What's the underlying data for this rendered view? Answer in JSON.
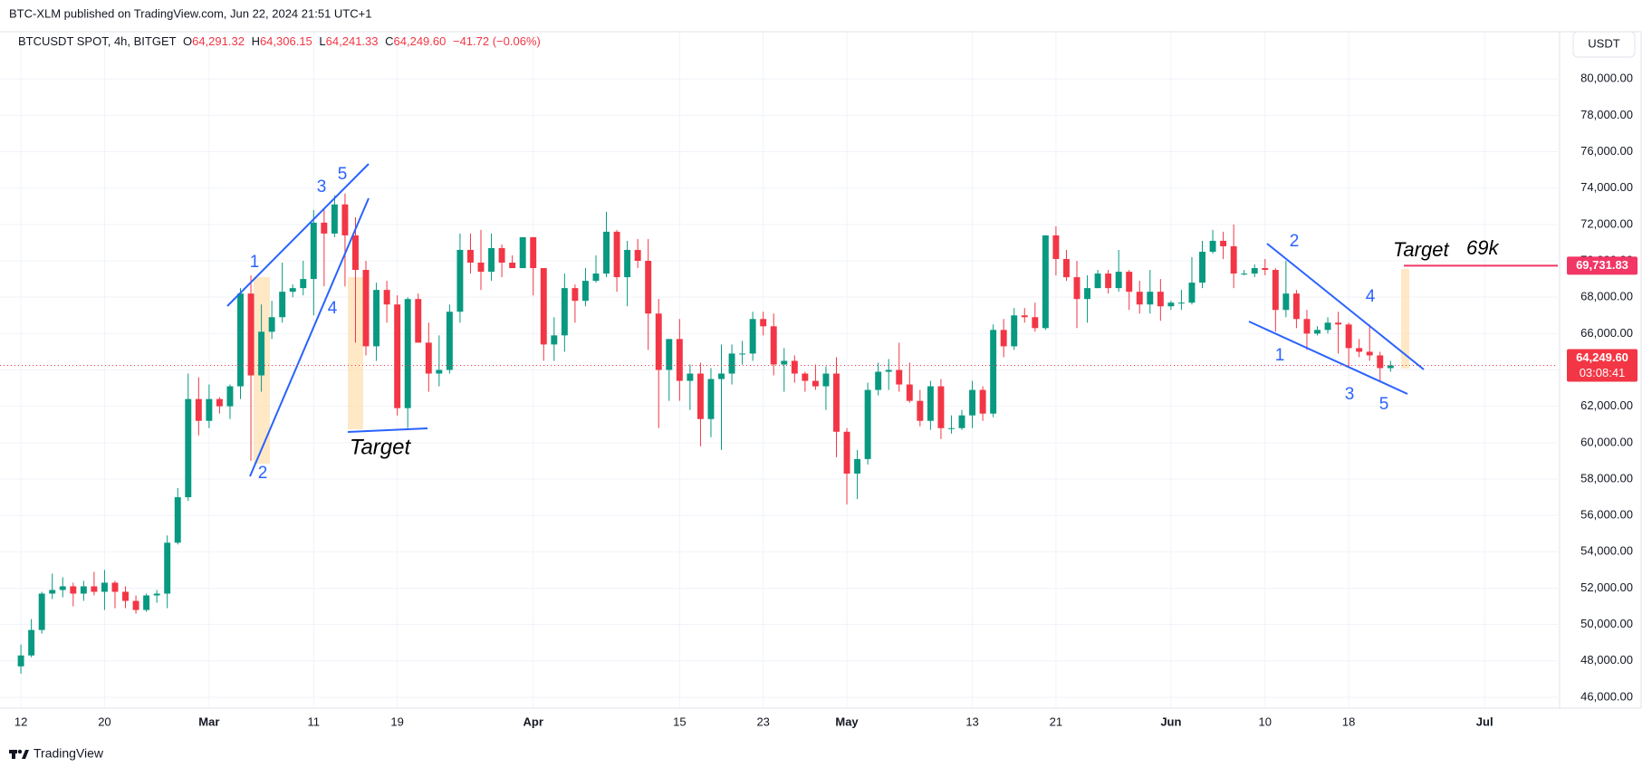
{
  "header": {
    "publisher": "BTC-XLM published on TradingView.com, Jun 22, 2024 21:51 UTC+1",
    "currency_button": "USDT",
    "brand": "TradingView"
  },
  "legend": {
    "symbol": "BTCUSDT SPOT, 4h, BITGET",
    "open_label": "O",
    "open": "64,291.32",
    "high_label": "H",
    "high": "64,306.15",
    "low_label": "L",
    "low": "64,241.33",
    "close_label": "C",
    "close": "64,249.60",
    "change": "−41.72 (−0.06%)"
  },
  "annotations": {
    "left_wave": [
      "1",
      "2",
      "3",
      "4",
      "5"
    ],
    "left_target": "Target",
    "right_wave": [
      "1",
      "2",
      "3",
      "4",
      "5"
    ],
    "right_target": "Target",
    "right_target_value": "69k"
  },
  "chart_data": {
    "type": "candlestick",
    "up_color": "#089981",
    "down_color": "#f23645",
    "grid": true,
    "xlim": [
      "2024-02-10",
      "2024-07-08"
    ],
    "xticks": [
      {
        "value": "2024-02-12",
        "label": "12"
      },
      {
        "value": "2024-02-20",
        "label": "20"
      },
      {
        "value": "2024-03-01",
        "label": "Mar"
      },
      {
        "value": "2024-03-11",
        "label": "11"
      },
      {
        "value": "2024-03-19",
        "label": "19"
      },
      {
        "value": "2024-04-01",
        "label": "Apr"
      },
      {
        "value": "2024-04-15",
        "label": "15"
      },
      {
        "value": "2024-04-23",
        "label": "23"
      },
      {
        "value": "2024-05-01",
        "label": "May"
      },
      {
        "value": "2024-05-13",
        "label": "13"
      },
      {
        "value": "2024-05-21",
        "label": "21"
      },
      {
        "value": "2024-06-01",
        "label": "Jun"
      },
      {
        "value": "2024-06-10",
        "label": "10"
      },
      {
        "value": "2024-06-18",
        "label": "18"
      },
      {
        "value": "2024-07-01",
        "label": "Jul"
      }
    ],
    "ylim": [
      45400,
      82600
    ],
    "yticks": [
      {
        "value": 46000,
        "label": "46,000.00"
      },
      {
        "value": 48000,
        "label": "48,000.00"
      },
      {
        "value": 50000,
        "label": "50,000.00"
      },
      {
        "value": 52000,
        "label": "52,000.00"
      },
      {
        "value": 54000,
        "label": "54,000.00"
      },
      {
        "value": 56000,
        "label": "56,000.00"
      },
      {
        "value": 58000,
        "label": "58,000.00"
      },
      {
        "value": 60000,
        "label": "60,000.00"
      },
      {
        "value": 62000,
        "label": "62,000.00"
      },
      {
        "value": 64000,
        "label": "64,000.00"
      },
      {
        "value": 66000,
        "label": "66,000.00"
      },
      {
        "value": 68000,
        "label": "68,000.00"
      },
      {
        "value": 70000,
        "label": "70,000.00"
      },
      {
        "value": 72000,
        "label": "72,000.00"
      },
      {
        "value": 74000,
        "label": "74,000.00"
      },
      {
        "value": 76000,
        "label": "76,000.00"
      },
      {
        "value": 78000,
        "label": "78,000.00"
      },
      {
        "value": 80000,
        "label": "80,000.00"
      }
    ],
    "current_price": {
      "value": 64249.6,
      "label": "64,249.60"
    },
    "countdown": "03:08:41",
    "target_price": {
      "value": 69731.83,
      "label": "69,731.83",
      "color": "#f23665"
    },
    "x": [
      "2024-02-12",
      "2024-02-13",
      "2024-02-14",
      "2024-02-15",
      "2024-02-16",
      "2024-02-17",
      "2024-02-18",
      "2024-02-19",
      "2024-02-20",
      "2024-02-21",
      "2024-02-22",
      "2024-02-23",
      "2024-02-24",
      "2024-02-25",
      "2024-02-26",
      "2024-02-27",
      "2024-02-28",
      "2024-02-29",
      "2024-03-01",
      "2024-03-02",
      "2024-03-03",
      "2024-03-04",
      "2024-03-05",
      "2024-03-06",
      "2024-03-07",
      "2024-03-08",
      "2024-03-09",
      "2024-03-10",
      "2024-03-11",
      "2024-03-12",
      "2024-03-13",
      "2024-03-14",
      "2024-03-15",
      "2024-03-16",
      "2024-03-17",
      "2024-03-18",
      "2024-03-19",
      "2024-03-20",
      "2024-03-21",
      "2024-03-22",
      "2024-03-23",
      "2024-03-24",
      "2024-03-25",
      "2024-03-26",
      "2024-03-27",
      "2024-03-28",
      "2024-03-29",
      "2024-03-30",
      "2024-03-31",
      "2024-04-01",
      "2024-04-02",
      "2024-04-03",
      "2024-04-04",
      "2024-04-05",
      "2024-04-06",
      "2024-04-07",
      "2024-04-08",
      "2024-04-09",
      "2024-04-10",
      "2024-04-11",
      "2024-04-12",
      "2024-04-13",
      "2024-04-14",
      "2024-04-15",
      "2024-04-16",
      "2024-04-17",
      "2024-04-18",
      "2024-04-19",
      "2024-04-20",
      "2024-04-21",
      "2024-04-22",
      "2024-04-23",
      "2024-04-24",
      "2024-04-25",
      "2024-04-26",
      "2024-04-27",
      "2024-04-28",
      "2024-04-29",
      "2024-04-30",
      "2024-05-01",
      "2024-05-02",
      "2024-05-03",
      "2024-05-04",
      "2024-05-05",
      "2024-05-06",
      "2024-05-07",
      "2024-05-08",
      "2024-05-09",
      "2024-05-10",
      "2024-05-11",
      "2024-05-12",
      "2024-05-13",
      "2024-05-14",
      "2024-05-15",
      "2024-05-16",
      "2024-05-17",
      "2024-05-18",
      "2024-05-19",
      "2024-05-20",
      "2024-05-21",
      "2024-05-22",
      "2024-05-23",
      "2024-05-24",
      "2024-05-25",
      "2024-05-26",
      "2024-05-27",
      "2024-05-28",
      "2024-05-29",
      "2024-05-30",
      "2024-05-31",
      "2024-06-01",
      "2024-06-02",
      "2024-06-03",
      "2024-06-04",
      "2024-06-05",
      "2024-06-06",
      "2024-06-07",
      "2024-06-08",
      "2024-06-09",
      "2024-06-10",
      "2024-06-11",
      "2024-06-12",
      "2024-06-13",
      "2024-06-14",
      "2024-06-15",
      "2024-06-16",
      "2024-06-17",
      "2024-06-18",
      "2024-06-19",
      "2024-06-20",
      "2024-06-21",
      "2024-06-22"
    ],
    "series": [
      {
        "name": "BTCUSDT SPOT, 4h, BITGET",
        "open": [
          47700,
          48300,
          49700,
          51700,
          51900,
          52100,
          51700,
          52100,
          51800,
          52300,
          51800,
          51300,
          50800,
          51600,
          51700,
          54500,
          57000,
          62400,
          61200,
          62400,
          62000,
          63100,
          68200,
          63700,
          66100,
          66900,
          68300,
          68500,
          69000,
          72100,
          71500,
          73100,
          71400,
          69500,
          65300,
          68400,
          67600,
          61900,
          67900,
          65500,
          63800,
          64000,
          67200,
          70600,
          69900,
          69400,
          70700,
          69900,
          69600,
          71300,
          69600,
          65400,
          65900,
          68500,
          67800,
          68900,
          69300,
          71600,
          69100,
          70600,
          70000,
          67100,
          64000,
          65700,
          63400,
          63800,
          61300,
          63500,
          63800,
          64900,
          64900,
          66800,
          66400,
          64300,
          64500,
          63800,
          63400,
          63100,
          63800,
          60600,
          58300,
          59100,
          62900,
          63900,
          64000,
          63200,
          62300,
          61200,
          63100,
          60800,
          60800,
          61500,
          62900,
          61600,
          66200,
          65300,
          67000,
          66900,
          66300,
          71400,
          70100,
          69100,
          67900,
          68500,
          69300,
          68500,
          69400,
          68300,
          67600,
          68300,
          67500,
          67700,
          67700,
          68800,
          70500,
          71100,
          70800,
          69300,
          69300,
          69600,
          69500,
          67300,
          68200,
          66800,
          66000,
          66200,
          66600,
          66500,
          65200,
          65000,
          64800,
          64100
        ],
        "high": [
          48900,
          50300,
          51800,
          52800,
          52600,
          52300,
          52400,
          52900,
          53000,
          52400,
          52100,
          51600,
          51700,
          51900,
          54900,
          57500,
          63800,
          63600,
          63200,
          62500,
          63200,
          68500,
          69200,
          67600,
          67800,
          69900,
          68700,
          70000,
          72800,
          72900,
          73600,
          73700,
          72400,
          70000,
          68800,
          68900,
          68100,
          68000,
          68200,
          66600,
          65900,
          67600,
          71500,
          71500,
          71700,
          71500,
          70900,
          70300,
          71300,
          71300,
          69600,
          66900,
          69300,
          68700,
          69600,
          70300,
          72700,
          71700,
          71100,
          71200,
          71200,
          67900,
          65700,
          66800,
          64300,
          64400,
          64100,
          65400,
          65400,
          65600,
          67200,
          67200,
          67100,
          65200,
          64800,
          63900,
          64300,
          64200,
          64700,
          60800,
          59600,
          63300,
          64400,
          64600,
          65500,
          64400,
          62900,
          63400,
          63500,
          61500,
          61800,
          63400,
          63100,
          66500,
          66800,
          67400,
          67400,
          67700,
          71400,
          71900,
          70600,
          70000,
          69200,
          69500,
          69500,
          70600,
          69500,
          68900,
          69500,
          69000,
          67800,
          68400,
          70200,
          71100,
          71700,
          71600,
          72000,
          69500,
          69800,
          70100,
          69600,
          70000,
          68400,
          67300,
          66400,
          66900,
          67200,
          66600,
          65700,
          66500,
          65000,
          64500
        ],
        "low": [
          47300,
          48200,
          49500,
          51400,
          51500,
          51000,
          51300,
          51600,
          50800,
          50900,
          50900,
          50600,
          50700,
          51200,
          50900,
          54400,
          56800,
          60400,
          60800,
          61600,
          61300,
          62400,
          59000,
          62800,
          65700,
          66600,
          68000,
          68100,
          67000,
          68600,
          71300,
          68600,
          65500,
          64800,
          64500,
          66600,
          61500,
          60800,
          65500,
          62800,
          63100,
          63800,
          66600,
          69300,
          68400,
          68900,
          69100,
          69600,
          69600,
          68100,
          64500,
          64500,
          65000,
          66600,
          67500,
          68800,
          69100,
          68300,
          67500,
          69600,
          65100,
          60800,
          62300,
          62300,
          61800,
          59800,
          60300,
          59600,
          63200,
          64300,
          64500,
          65900,
          63700,
          62800,
          63300,
          62800,
          62900,
          61800,
          59200,
          56600,
          56900,
          58800,
          62600,
          62900,
          62800,
          62200,
          60900,
          60700,
          60200,
          60500,
          60700,
          60800,
          61200,
          61400,
          64700,
          65100,
          66600,
          66100,
          66200,
          69200,
          68900,
          66300,
          66600,
          68500,
          68200,
          68300,
          67300,
          67100,
          67100,
          66700,
          67300,
          67300,
          67600,
          68500,
          70400,
          70100,
          68500,
          69200,
          69100,
          69200,
          66100,
          66900,
          66300,
          65100,
          65900,
          66000,
          64900,
          64100,
          64700,
          64500,
          63400,
          63900
        ],
        "close": [
          48300,
          49700,
          51700,
          51900,
          52100,
          51700,
          52100,
          51800,
          52300,
          51800,
          51300,
          50800,
          51600,
          51700,
          54500,
          57000,
          62400,
          61200,
          62400,
          62000,
          63100,
          68200,
          63700,
          66100,
          66900,
          68300,
          68500,
          69000,
          72100,
          71500,
          73100,
          71400,
          69500,
          65300,
          68400,
          67600,
          61900,
          67900,
          65500,
          63800,
          64000,
          67200,
          70600,
          69900,
          69400,
          70700,
          69900,
          69600,
          71300,
          69600,
          65400,
          65900,
          68500,
          67800,
          68900,
          69300,
          71600,
          69100,
          70600,
          70000,
          67100,
          64000,
          65700,
          63400,
          63800,
          61300,
          63500,
          63800,
          64900,
          64900,
          66800,
          66400,
          64300,
          64500,
          63800,
          63400,
          63100,
          63800,
          60600,
          58300,
          59100,
          62900,
          63900,
          64000,
          63200,
          62300,
          61200,
          63100,
          60800,
          60800,
          61500,
          62900,
          61600,
          66200,
          65300,
          67000,
          66900,
          66300,
          71400,
          70100,
          69100,
          67900,
          68500,
          69300,
          68500,
          69400,
          68300,
          67600,
          68300,
          67500,
          67700,
          67700,
          68800,
          70500,
          71100,
          70800,
          69300,
          69300,
          69600,
          69500,
          67300,
          68200,
          66800,
          66000,
          66200,
          66600,
          66500,
          65200,
          65000,
          64800,
          64100,
          64250
        ]
      }
    ]
  }
}
